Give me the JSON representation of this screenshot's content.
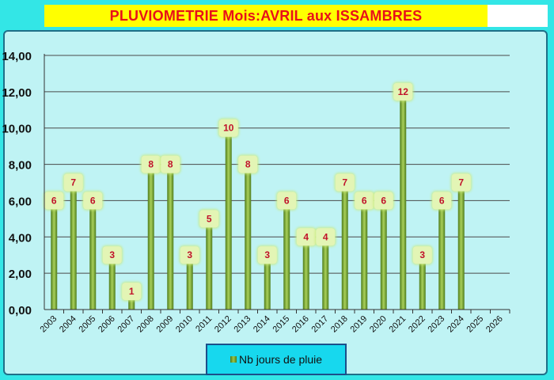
{
  "title": "PLUVIOMETRIE Mois:AVRIL aux ISSAMBRES",
  "colors": {
    "bar_dark": "#4f7d1c",
    "bar_light": "#a9d05a",
    "label_bg": "#e3f5b5",
    "label_text": "#c0122a"
  },
  "chart_data": {
    "type": "bar",
    "categories": [
      "2003",
      "2004",
      "2005",
      "2006",
      "2007",
      "2008",
      "2009",
      "2010",
      "2011",
      "2012",
      "2013",
      "2014",
      "2015",
      "2016",
      "2017",
      "2018",
      "2019",
      "2020",
      "2021",
      "2022",
      "2023",
      "2024",
      "2025",
      "2026"
    ],
    "series": [
      {
        "name": "Nb jours de pluie",
        "values": [
          6,
          7,
          6,
          3,
          1,
          8,
          8,
          3,
          5,
          10,
          8,
          3,
          6,
          4,
          4,
          7,
          6,
          6,
          12,
          3,
          6,
          7,
          null,
          null
        ]
      }
    ],
    "yticks": [
      "0,00",
      "2,00",
      "4,00",
      "6,00",
      "8,00",
      "10,00",
      "12,00",
      "14,00"
    ],
    "ylim": [
      0,
      14
    ],
    "grid": true,
    "legend_position": "bottom"
  }
}
